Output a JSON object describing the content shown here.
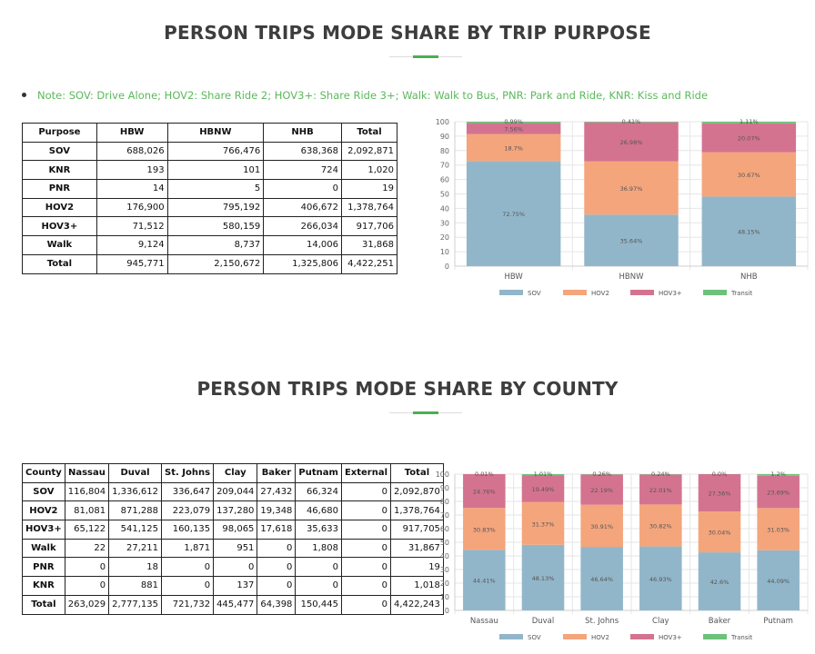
{
  "section1": {
    "title": "PERSON TRIPS MODE SHARE BY TRIP PURPOSE",
    "note": "Note: SOV: Drive Alone; HOV2: Share Ride 2; HOV3+: Share Ride 3+; Walk: Walk to Bus, PNR: Park and Ride, KNR: Kiss and Ride",
    "table": {
      "headers": [
        "Purpose",
        "HBW",
        "HBNW",
        "NHB",
        "Total"
      ],
      "rows": [
        [
          "SOV",
          "688,026",
          "766,476",
          "638,368",
          "2,092,871"
        ],
        [
          "KNR",
          "193",
          "101",
          "724",
          "1,020"
        ],
        [
          "PNR",
          "14",
          "5",
          "0",
          "19"
        ],
        [
          "HOV2",
          "176,900",
          "795,192",
          "406,672",
          "1,378,764"
        ],
        [
          "HOV3+",
          "71,512",
          "580,159",
          "266,034",
          "917,706"
        ],
        [
          "Walk",
          "9,124",
          "8,737",
          "14,006",
          "31,868"
        ],
        [
          "Total",
          "945,771",
          "2,150,672",
          "1,325,806",
          "4,422,251"
        ]
      ]
    }
  },
  "section2": {
    "title": "PERSON TRIPS MODE SHARE BY COUNTY",
    "table": {
      "headers": [
        "County",
        "Nassau",
        "Duval",
        "St. Johns",
        "Clay",
        "Baker",
        "Putnam",
        "External",
        "Total"
      ],
      "rows": [
        [
          "SOV",
          "116,804",
          "1,336,612",
          "336,647",
          "209,044",
          "27,432",
          "66,324",
          "0",
          "2,092,870"
        ],
        [
          "HOV2",
          "81,081",
          "871,288",
          "223,079",
          "137,280",
          "19,348",
          "46,680",
          "0",
          "1,378,764"
        ],
        [
          "HOV3+",
          "65,122",
          "541,125",
          "160,135",
          "98,065",
          "17,618",
          "35,633",
          "0",
          "917,705"
        ],
        [
          "Walk",
          "22",
          "27,211",
          "1,871",
          "951",
          "0",
          "1,808",
          "0",
          "31,867"
        ],
        [
          "PNR",
          "0",
          "18",
          "0",
          "0",
          "0",
          "0",
          "0",
          "19"
        ],
        [
          "KNR",
          "0",
          "881",
          "0",
          "137",
          "0",
          "0",
          "0",
          "1,018"
        ],
        [
          "Total",
          "263,029",
          "2,777,135",
          "721,732",
          "445,477",
          "64,398",
          "150,445",
          "0",
          "4,422,243"
        ]
      ]
    }
  },
  "colors": {
    "SOV": "#92b6c9",
    "HOV2": "#f4a57c",
    "HOV3+": "#d4738f",
    "Transit": "#6cc27a",
    "accent": "#4caf50",
    "note": "#5cb85c"
  },
  "chart_data": [
    {
      "type": "bar",
      "stacked": true,
      "categories": [
        "HBW",
        "HBNW",
        "NHB"
      ],
      "ylim": [
        0,
        100
      ],
      "yticks": [
        0,
        10,
        20,
        30,
        40,
        50,
        60,
        70,
        80,
        90,
        100
      ],
      "grid": true,
      "legend": "bottom",
      "series": [
        {
          "name": "SOV",
          "values": [
            72.75,
            35.64,
            48.15
          ],
          "labels": [
            "72.75%",
            "35.64%",
            "48.15%"
          ]
        },
        {
          "name": "HOV2",
          "values": [
            18.7,
            36.97,
            30.67
          ],
          "labels": [
            "18.7%",
            "36.97%",
            "30.67%"
          ]
        },
        {
          "name": "HOV3+",
          "values": [
            7.56,
            26.98,
            20.07
          ],
          "labels": [
            "7.56%",
            "26.98%",
            "20.07%"
          ]
        },
        {
          "name": "Transit",
          "values": [
            0.99,
            0.41,
            1.11
          ],
          "labels": [
            "0.99%",
            "0.41%",
            "1.11%"
          ]
        }
      ]
    },
    {
      "type": "bar",
      "stacked": true,
      "categories": [
        "Nassau",
        "Duval",
        "St. Johns",
        "Clay",
        "Baker",
        "Putnam"
      ],
      "ylim": [
        0,
        100
      ],
      "yticks": [
        0,
        10,
        20,
        30,
        40,
        50,
        60,
        70,
        80,
        90,
        100
      ],
      "grid": true,
      "legend": "bottom",
      "series": [
        {
          "name": "SOV",
          "values": [
            44.41,
            48.13,
            46.64,
            46.93,
            42.6,
            44.09
          ],
          "labels": [
            "44.41%",
            "48.13%",
            "46.64%",
            "46.93%",
            "42.6%",
            "44.09%"
          ]
        },
        {
          "name": "HOV2",
          "values": [
            30.83,
            31.37,
            30.91,
            30.82,
            30.04,
            31.03
          ],
          "labels": [
            "30.83%",
            "31.37%",
            "30.91%",
            "30.82%",
            "30.04%",
            "31.03%"
          ]
        },
        {
          "name": "HOV3+",
          "values": [
            24.76,
            19.49,
            22.19,
            22.01,
            27.36,
            23.69
          ],
          "labels": [
            "24.76%",
            "19.49%",
            "22.19%",
            "22.01%",
            "27.36%",
            "23.69%"
          ]
        },
        {
          "name": "Transit",
          "values": [
            0.01,
            1.01,
            0.26,
            0.24,
            0.0,
            1.2
          ],
          "labels": [
            "0.01%",
            "1.01%",
            "0.26%",
            "0.24%",
            "0.0%",
            "1.2%"
          ]
        }
      ]
    }
  ]
}
